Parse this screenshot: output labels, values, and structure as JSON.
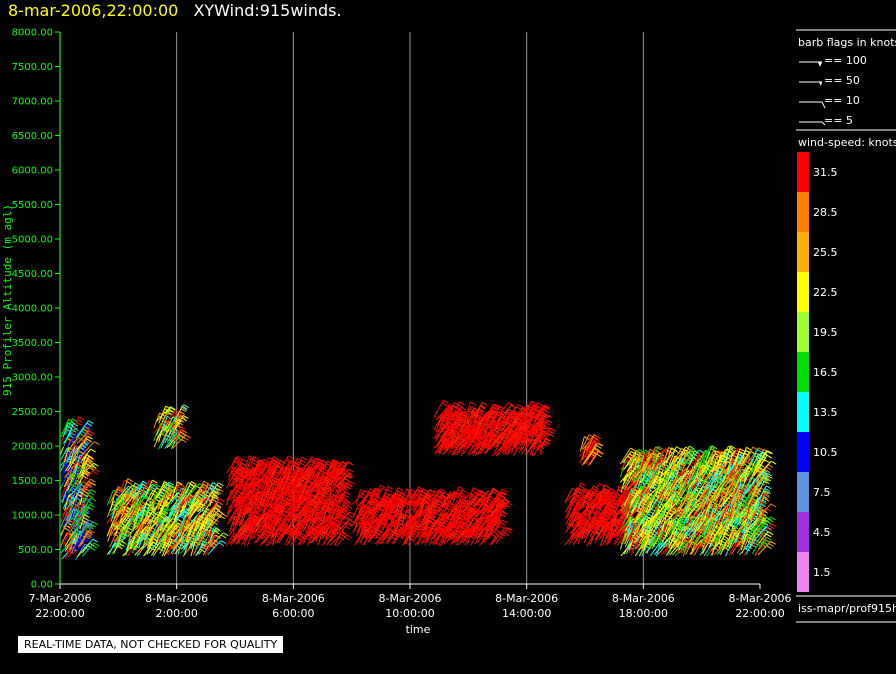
{
  "title": {
    "time": "8-mar-2006,22:00:00",
    "product": "XYWind:915winds."
  },
  "quality_note": "REAL-TIME DATA, NOT CHECKED FOR QUALITY",
  "source_label": "iss-mapr/prof915h",
  "barb_legend": {
    "title": "barb flags in knots",
    "entries": [
      "== 100",
      "== 50",
      "== 10",
      "== 5"
    ]
  },
  "speed_legend": {
    "title": "wind-speed: knots",
    "levels": [
      {
        "label": "31.5",
        "color": "#ff0000"
      },
      {
        "label": "28.5",
        "color": "#ff8000"
      },
      {
        "label": "25.5",
        "color": "#ffb000"
      },
      {
        "label": "22.5",
        "color": "#ffff00"
      },
      {
        "label": "19.5",
        "color": "#a0ff30"
      },
      {
        "label": "16.5",
        "color": "#00e000"
      },
      {
        "label": "13.5",
        "color": "#00ffff"
      },
      {
        "label": "10.5",
        "color": "#0000ff"
      },
      {
        "label": "7.5",
        "color": "#6090e0"
      },
      {
        "label": "4.5",
        "color": "#a030e0"
      },
      {
        "label": "1.5",
        "color": "#ee82ee"
      }
    ]
  },
  "chart_data": {
    "type": "scatter",
    "title": "8-mar-2006,22:00:00 XYWind:915winds.",
    "xlabel": "time",
    "ylabel": "915 Profiler Altitude (m agl)",
    "xlim": [
      0,
      24
    ],
    "ylim": [
      0,
      8000
    ],
    "yticks": [
      "0.00",
      "500.00",
      "1000.00",
      "1500.00",
      "2000.00",
      "2500.00",
      "3000.00",
      "3500.00",
      "4000.00",
      "4500.00",
      "5000.00",
      "5500.00",
      "6000.00",
      "6500.00",
      "7000.00",
      "7500.00",
      "8000.00"
    ],
    "xticks": [
      {
        "h": 0,
        "line1": "7-Mar-2006",
        "line2": "22:00:00"
      },
      {
        "h": 4,
        "line1": "8-Mar-2006",
        "line2": "2:00:00"
      },
      {
        "h": 8,
        "line1": "8-Mar-2006",
        "line2": "6:00:00"
      },
      {
        "h": 12,
        "line1": "8-Mar-2006",
        "line2": "10:00:00"
      },
      {
        "h": 16,
        "line1": "8-Mar-2006",
        "line2": "14:00:00"
      },
      {
        "h": 20,
        "line1": "8-Mar-2006",
        "line2": "18:00:00"
      },
      {
        "h": 24,
        "line1": "8-Mar-2006",
        "line2": "22:00:00"
      }
    ],
    "clusters": [
      {
        "t0": 0.0,
        "t1": 0.8,
        "z0": 350,
        "z1": 2200,
        "pal": "mixcool"
      },
      {
        "t0": 1.6,
        "t1": 5.2,
        "z0": 400,
        "z1": 1300,
        "pal": "mixwarm"
      },
      {
        "t0": 3.2,
        "t1": 4.0,
        "z0": 1950,
        "z1": 2400,
        "pal": "mixwarm"
      },
      {
        "t0": 5.7,
        "t1": 9.6,
        "z0": 550,
        "z1": 1650,
        "pal": "red"
      },
      {
        "t0": 10.0,
        "t1": 15.0,
        "z0": 550,
        "z1": 1200,
        "pal": "red"
      },
      {
        "t0": 12.8,
        "t1": 16.5,
        "z0": 1850,
        "z1": 2450,
        "pal": "red"
      },
      {
        "t0": 17.3,
        "t1": 19.6,
        "z0": 550,
        "z1": 1250,
        "pal": "red"
      },
      {
        "t0": 17.8,
        "t1": 18.2,
        "z0": 1700,
        "z1": 2000,
        "pal": "orange"
      },
      {
        "t0": 19.2,
        "t1": 24.0,
        "z0": 400,
        "z1": 1800,
        "pal": "mixwarm"
      }
    ]
  }
}
